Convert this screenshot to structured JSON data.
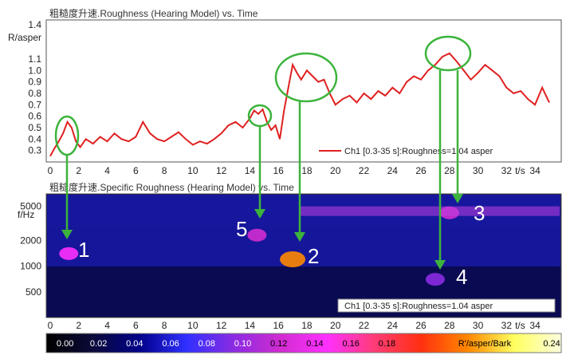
{
  "chart_data": [
    {
      "type": "line",
      "title": "粗糙度升速.Roughness (Hearing Model) vs. Time",
      "ylabel": "R/asper",
      "xlabel": "t/s",
      "xlim": [
        0,
        35
      ],
      "ylim": [
        0.2,
        1.4
      ],
      "x_ticks": [
        "0",
        "2",
        "4",
        "6",
        "8",
        "10",
        "12",
        "14",
        "16",
        "18",
        "20",
        "22",
        "24",
        "26",
        "28",
        "30",
        "32",
        "34"
      ],
      "y_ticks": [
        "1.4",
        "1.1",
        "1.0",
        "0.9",
        "0.8",
        "0.7",
        "0.6",
        "0.5",
        "0.4",
        "0.3"
      ],
      "legend": "Ch1 [0.3-35 s]:Roughness=1.04 asper",
      "series": [
        {
          "name": "Ch1 [0.3-35 s]:Roughness=1.04 asper",
          "color": "#e02020",
          "x": [
            0.0,
            0.3,
            0.6,
            0.9,
            1.2,
            1.5,
            1.8,
            2.1,
            2.5,
            3.0,
            3.5,
            4.0,
            4.5,
            5.0,
            5.5,
            6.0,
            6.5,
            7.0,
            7.5,
            8.0,
            8.5,
            9.0,
            9.5,
            10.0,
            10.5,
            11.0,
            11.5,
            12.0,
            12.5,
            13.0,
            13.5,
            14.0,
            14.3,
            14.6,
            14.9,
            15.2,
            15.5,
            15.8,
            16.1,
            16.4,
            16.7,
            17.0,
            17.3,
            17.6,
            18.0,
            18.4,
            18.8,
            19.2,
            19.6,
            20.0,
            20.5,
            21.0,
            21.5,
            22.0,
            22.5,
            23.0,
            23.5,
            24.0,
            24.5,
            25.0,
            25.5,
            26.0,
            26.5,
            27.0,
            27.5,
            28.0,
            28.5,
            29.0,
            29.5,
            30.0,
            30.5,
            31.0,
            31.5,
            32.0,
            32.5,
            33.0,
            33.5,
            34.0,
            34.5,
            35.0
          ],
          "y": [
            0.25,
            0.32,
            0.38,
            0.45,
            0.55,
            0.5,
            0.38,
            0.33,
            0.4,
            0.36,
            0.42,
            0.38,
            0.45,
            0.4,
            0.38,
            0.42,
            0.55,
            0.45,
            0.4,
            0.38,
            0.42,
            0.46,
            0.4,
            0.35,
            0.38,
            0.36,
            0.4,
            0.45,
            0.52,
            0.55,
            0.5,
            0.58,
            0.65,
            0.62,
            0.66,
            0.55,
            0.48,
            0.52,
            0.4,
            0.65,
            0.85,
            1.05,
            0.98,
            0.92,
            1.0,
            0.95,
            0.9,
            0.92,
            0.8,
            0.7,
            0.75,
            0.78,
            0.72,
            0.8,
            0.75,
            0.82,
            0.78,
            0.85,
            0.8,
            0.9,
            0.95,
            0.92,
            1.0,
            1.05,
            1.12,
            1.15,
            1.08,
            1.0,
            0.92,
            0.98,
            1.05,
            1.0,
            0.95,
            0.85,
            0.8,
            0.82,
            0.75,
            0.7,
            0.85,
            0.72
          ]
        }
      ]
    },
    {
      "type": "heatmap",
      "title": "粗糙度升速.Specific Roughness (Hearing Model) vs. Time",
      "ylabel": "f/Hz",
      "xlabel": "t/s",
      "xlim": [
        0,
        35
      ],
      "y_ticks": [
        "5000",
        "2000",
        "1000",
        "500"
      ],
      "x_ticks": [
        "0",
        "2",
        "4",
        "6",
        "8",
        "10",
        "12",
        "14",
        "16",
        "18",
        "20",
        "22",
        "24",
        "26",
        "28",
        "30",
        "32",
        "34"
      ],
      "legend": "Ch1 [0.3-35 s]:Roughness=1.04 asper",
      "colorbar": {
        "label": "R'/asper/Bark",
        "ticks": [
          "0.00",
          "0.02",
          "0.04",
          "0.06",
          "0.08",
          "0.10",
          "0.12",
          "0.14",
          "0.16",
          "0.18",
          "0.24"
        ],
        "stops": [
          "#000000",
          "#0a0a3a",
          "#00008b",
          "#3030ff",
          "#8a2be2",
          "#d02cd0",
          "#ff30ff",
          "#ff3c78",
          "#ff3010",
          "#ff8800",
          "#ffff60",
          "#ffffe0"
        ]
      },
      "blobs": [
        {
          "t": 1.3,
          "freq": 1400,
          "strength": 0.12
        },
        {
          "t": 17.0,
          "freq": 1200,
          "strength": 0.2
        },
        {
          "t": 28.0,
          "freq": 4200,
          "strength": 0.1
        },
        {
          "t": 27.0,
          "freq": 700,
          "strength": 0.09
        },
        {
          "t": 14.5,
          "freq": 2300,
          "strength": 0.11
        }
      ],
      "annotations": [
        "1",
        "2",
        "3",
        "4",
        "5"
      ]
    }
  ]
}
